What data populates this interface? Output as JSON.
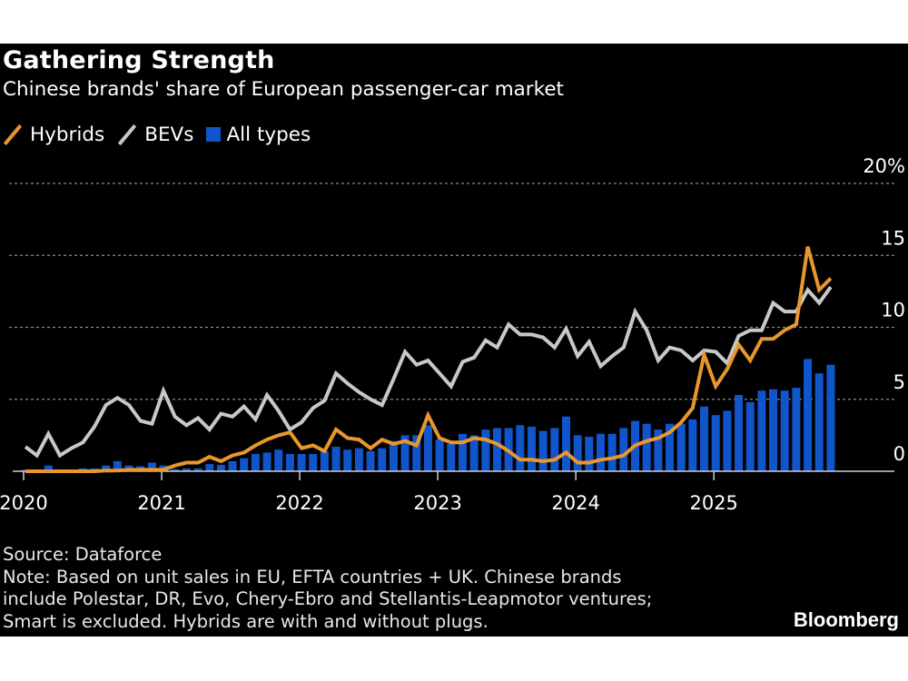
{
  "title": "Gathering Strength",
  "subtitle": "Chinese brands' share of European passenger-car market",
  "legend": [
    {
      "label": "Hybrids",
      "icon": "line-swatch-icon",
      "color": "#e8972f"
    },
    {
      "label": "BEVs",
      "icon": "line-swatch-icon",
      "color": "#c8c8c8"
    },
    {
      "label": "All types",
      "icon": "square-swatch-icon",
      "color": "#1155cc"
    }
  ],
  "footer": {
    "source": "Source: Dataforce",
    "note_lines": [
      "Note: Based on unit sales in EU, EFTA countries + UK. Chinese brands",
      "include Polestar, DR, Evo, Chery-Ebro and Stellantis-Leapmotor ventures;",
      "Smart is excluded. Hybrids are with and without plugs."
    ]
  },
  "logo": "Bloomberg",
  "chart_data": {
    "type": "bar+line",
    "title": "Gathering Strength",
    "subtitle": "Chinese brands' share of European passenger-car market",
    "xlabel": "",
    "ylabel": "",
    "x_start": "2020-01",
    "x_end": "2025-11",
    "frequency": "monthly",
    "x_tick_labels": [
      "2020",
      "2021",
      "2022",
      "2023",
      "2024",
      "2025"
    ],
    "y_ticks": [
      0,
      5,
      10,
      15,
      20
    ],
    "y_tick_labels": [
      "0",
      "5",
      "10",
      "15",
      "20%"
    ],
    "ylim": [
      0,
      20
    ],
    "y_axis_side": "right",
    "grid": "horizontal dashed",
    "legend_position": "top-left",
    "colors": {
      "hybrids": "#e8972f",
      "bevs": "#c8c8c8",
      "all_types": "#1155cc",
      "grid": "#8a8a8a",
      "axis": "#cfcfcf"
    },
    "series": [
      {
        "name": "Hybrids",
        "kind": "line",
        "values": [
          0.0,
          0.0,
          0.0,
          0.0,
          0.0,
          0.0,
          0.0,
          0.05,
          0.05,
          0.1,
          0.1,
          0.1,
          0.1,
          0.4,
          0.6,
          0.6,
          1.0,
          0.7,
          1.1,
          1.3,
          1.8,
          2.2,
          2.5,
          2.7,
          1.6,
          1.8,
          1.4,
          2.9,
          2.3,
          2.2,
          1.6,
          2.2,
          1.9,
          2.1,
          1.8,
          3.9,
          2.3,
          2.0,
          2.0,
          2.3,
          2.2,
          1.9,
          1.4,
          0.8,
          0.8,
          0.7,
          0.8,
          1.3,
          0.6,
          0.6,
          0.8,
          0.9,
          1.1,
          1.8,
          2.1,
          2.3,
          2.7,
          3.4,
          4.4,
          8.1,
          5.9,
          7.1,
          8.8,
          7.7,
          9.2,
          9.2,
          9.8,
          10.2,
          15.6,
          12.6,
          13.4
        ]
      },
      {
        "name": "BEVs",
        "kind": "line",
        "values": [
          1.7,
          1.1,
          2.6,
          1.1,
          1.6,
          2.0,
          3.1,
          4.6,
          5.1,
          4.6,
          3.5,
          3.3,
          5.6,
          3.8,
          3.2,
          3.7,
          2.9,
          4.0,
          3.8,
          4.5,
          3.6,
          5.3,
          4.2,
          2.9,
          3.4,
          4.4,
          4.9,
          6.8,
          6.1,
          5.5,
          5.0,
          4.6,
          6.4,
          8.3,
          7.4,
          7.7,
          6.8,
          5.9,
          7.6,
          7.9,
          9.1,
          8.6,
          10.2,
          9.5,
          9.5,
          9.3,
          8.6,
          9.9,
          8.0,
          9.0,
          7.3,
          8.0,
          8.6,
          11.1,
          9.8,
          7.7,
          8.6,
          8.4,
          7.7,
          8.4,
          8.3,
          7.5,
          9.4,
          9.8,
          9.8,
          11.7,
          11.1,
          11.1,
          12.6,
          11.7,
          12.8
        ]
      },
      {
        "name": "All types",
        "kind": "bar",
        "values": [
          0.1,
          0.05,
          0.4,
          0.1,
          0.1,
          0.2,
          0.2,
          0.4,
          0.7,
          0.4,
          0.35,
          0.6,
          0.4,
          0.15,
          0.2,
          0.2,
          0.5,
          0.45,
          0.7,
          0.9,
          1.2,
          1.3,
          1.5,
          1.2,
          1.2,
          1.2,
          1.4,
          1.7,
          1.5,
          1.6,
          1.4,
          1.6,
          2.1,
          2.5,
          2.5,
          3.2,
          2.2,
          1.9,
          2.6,
          2.5,
          2.9,
          3.0,
          3.0,
          3.2,
          3.1,
          2.8,
          3.0,
          3.8,
          2.5,
          2.4,
          2.6,
          2.6,
          3.0,
          3.5,
          3.3,
          2.9,
          3.3,
          3.3,
          3.6,
          4.5,
          3.9,
          4.2,
          5.3,
          4.8,
          5.6,
          5.7,
          5.6,
          5.8,
          7.8,
          6.8,
          7.4
        ]
      }
    ]
  }
}
